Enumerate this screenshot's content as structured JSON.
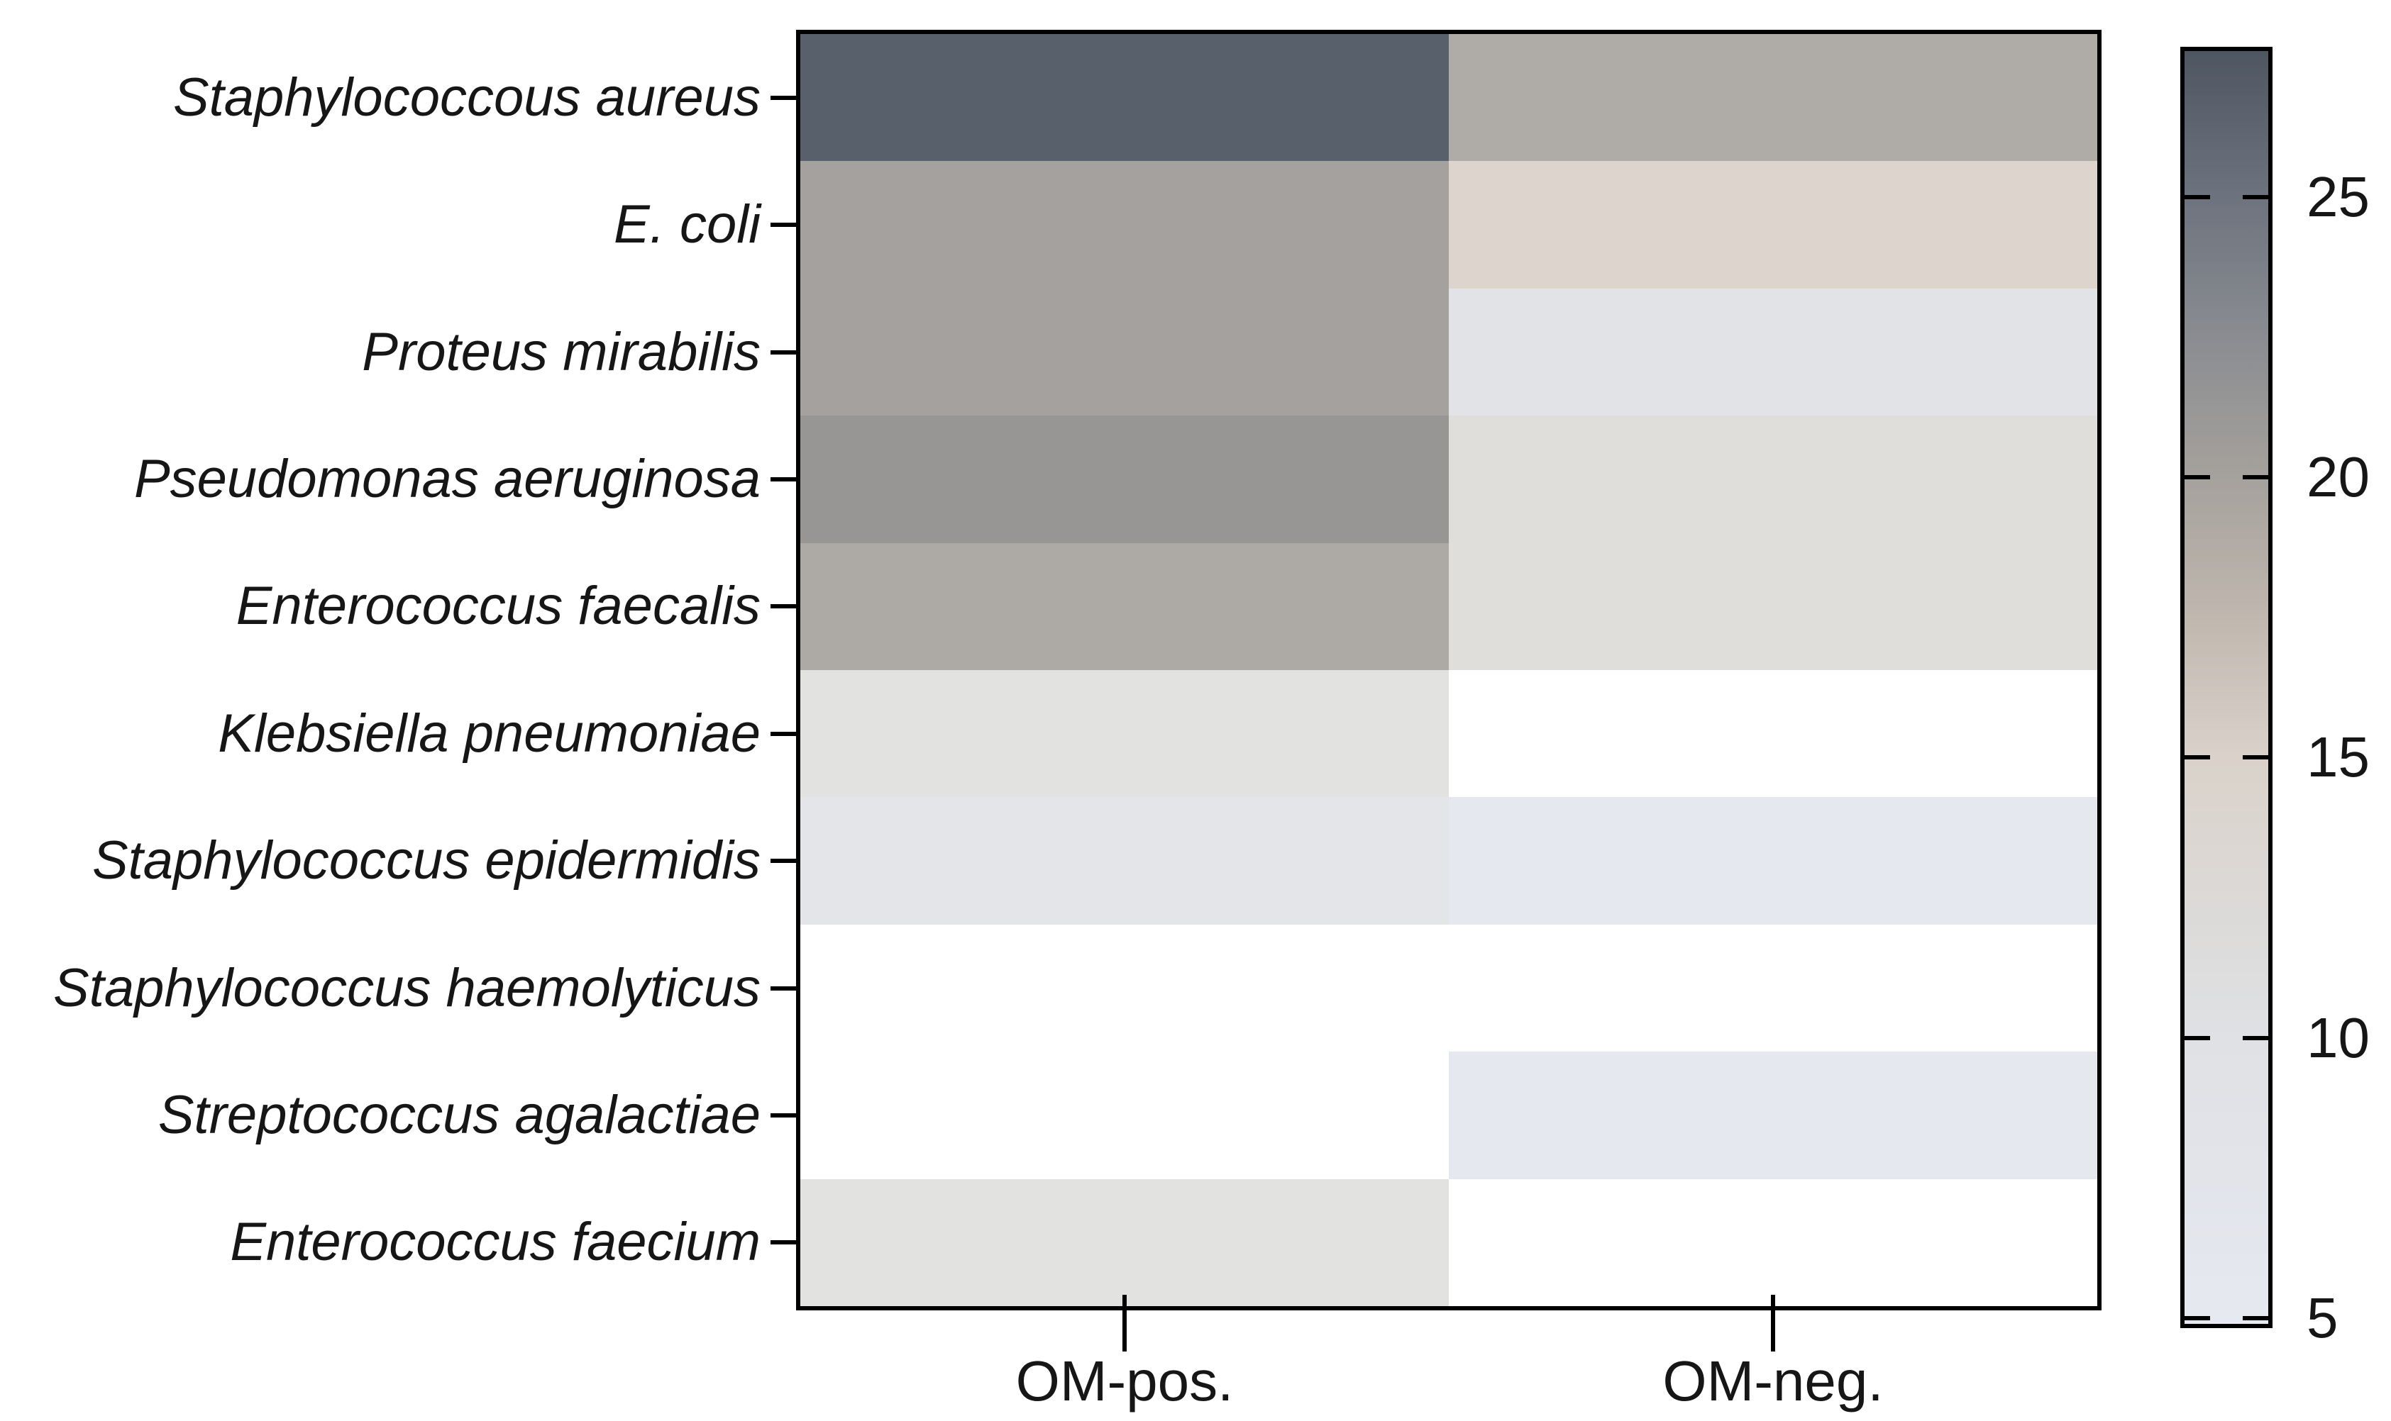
{
  "figure": {
    "background": "#ffffff",
    "axis_color": "#000000",
    "text_color": "#161616"
  },
  "chart_data": {
    "type": "heatmap",
    "title": "",
    "xlabel": "",
    "ylabel": "",
    "columns": [
      "OM-pos.",
      "OM-neg."
    ],
    "rows": [
      "Staphylococcous aureus",
      "E. coli",
      "Proteus mirabilis",
      "Pseudomonas aeruginosa",
      "Enterococcus faecalis",
      "Klebsiella pneumoniae",
      "Staphylococcus epidermidis",
      "Staphylococcus haemolyticus",
      "Streptococcus agalactiae",
      "Enterococcus faecium"
    ],
    "cells": [
      {
        "row": "Staphylococcous aureus",
        "values_est": [
          27,
          19
        ],
        "colors": [
          "#58606c",
          "#afaca8"
        ]
      },
      {
        "row": "E. coli",
        "values_est": [
          20,
          14
        ],
        "colors": [
          "#a4a19e",
          "#ddd4cd"
        ]
      },
      {
        "row": "Proteus mirabilis",
        "values_est": [
          20,
          9
        ],
        "colors": [
          "#a4a19e",
          "#e1e3e6"
        ]
      },
      {
        "row": "Pseudomonas aeruginosa",
        "values_est": [
          21,
          11
        ],
        "colors": [
          "#989694",
          "#e0dedb"
        ]
      },
      {
        "row": "Enterococcus faecalis",
        "values_est": [
          19,
          11
        ],
        "colors": [
          "#adaaa5",
          "#e0dedb"
        ]
      },
      {
        "row": "Klebsiella pneumoniae",
        "values_est": [
          10,
          null
        ],
        "colors": [
          "#e2e2e1",
          "#ffffff"
        ]
      },
      {
        "row": "Staphylococcus epidermidis",
        "values_est": [
          8,
          6
        ],
        "colors": [
          "#e3e5e9",
          "#e5e8ee"
        ]
      },
      {
        "row": "Staphylococcus haemolyticus",
        "values_est": [
          null,
          null
        ],
        "colors": [
          "#ffffff",
          "#ffffff"
        ]
      },
      {
        "row": "Streptococcus agalactiae",
        "values_est": [
          null,
          6
        ],
        "colors": [
          "#ffffff",
          "#e5e8ee"
        ]
      },
      {
        "row": "Enterococcus faecium",
        "values_est": [
          10,
          null
        ],
        "colors": [
          "#e2e2e1",
          "#ffffff"
        ]
      }
    ],
    "colorbar": {
      "position": "right",
      "tick_labels": [
        "25",
        "20",
        "15",
        "10",
        "5"
      ],
      "tick_values": [
        25,
        20,
        15,
        10,
        5
      ],
      "value_min": 4.9,
      "value_max": 27.6,
      "gradient_stops": [
        {
          "value": 27.6,
          "color": "#4e5662"
        },
        {
          "value": 25.0,
          "color": "#6d737e"
        },
        {
          "value": 22.5,
          "color": "#8a8c91"
        },
        {
          "value": 20.0,
          "color": "#a5a19c"
        },
        {
          "value": 17.5,
          "color": "#c0b7af"
        },
        {
          "value": 15.0,
          "color": "#dad2ca"
        },
        {
          "value": 12.5,
          "color": "#dcd9d7"
        },
        {
          "value": 10.0,
          "color": "#dfe1e4"
        },
        {
          "value": 7.5,
          "color": "#e2e4ea"
        },
        {
          "value": 5.0,
          "color": "#e6e9f0"
        }
      ]
    },
    "layout": {
      "grid": false,
      "cell_borders": false,
      "white_cells_meaning": "no value shown"
    }
  }
}
